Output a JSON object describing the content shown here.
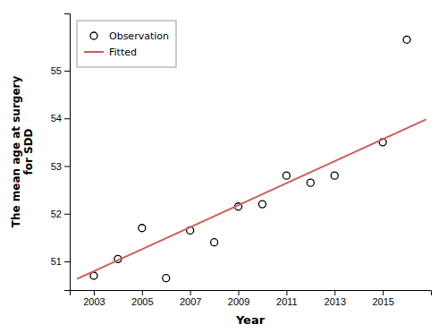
{
  "chart_data": {
    "type": "scatter",
    "xlabel": "Year",
    "ylabel": "The mean age at surgery\nfor SDD",
    "series": [
      {
        "name": "Observation",
        "type": "scatter",
        "marker": "circle",
        "color": "black",
        "x": [
          2003,
          2004,
          2005,
          2006,
          2007,
          2008,
          2009,
          2010,
          2011,
          2012,
          2013,
          2015,
          2016
        ],
        "values": [
          50.7,
          51.05,
          51.7,
          50.65,
          51.65,
          51.4,
          52.15,
          52.2,
          52.8,
          52.65,
          52.8,
          53.5,
          55.65
        ]
      },
      {
        "name": "Fitted",
        "type": "line",
        "line_style": "solid",
        "color": "#CD5C5C",
        "x": [
          2002.3,
          2016.8
        ],
        "values": [
          50.63084,
          53.97744
        ]
      }
    ],
    "xlim": [
      2002.0,
      2017.0
    ],
    "ylim": [
      50.4,
      56.2
    ],
    "xticks": [
      2003,
      2005,
      2007,
      2009,
      2011,
      2013,
      2015
    ],
    "yticks": [
      51,
      52,
      53,
      54,
      55
    ],
    "grid": false,
    "legend": "upper left"
  }
}
